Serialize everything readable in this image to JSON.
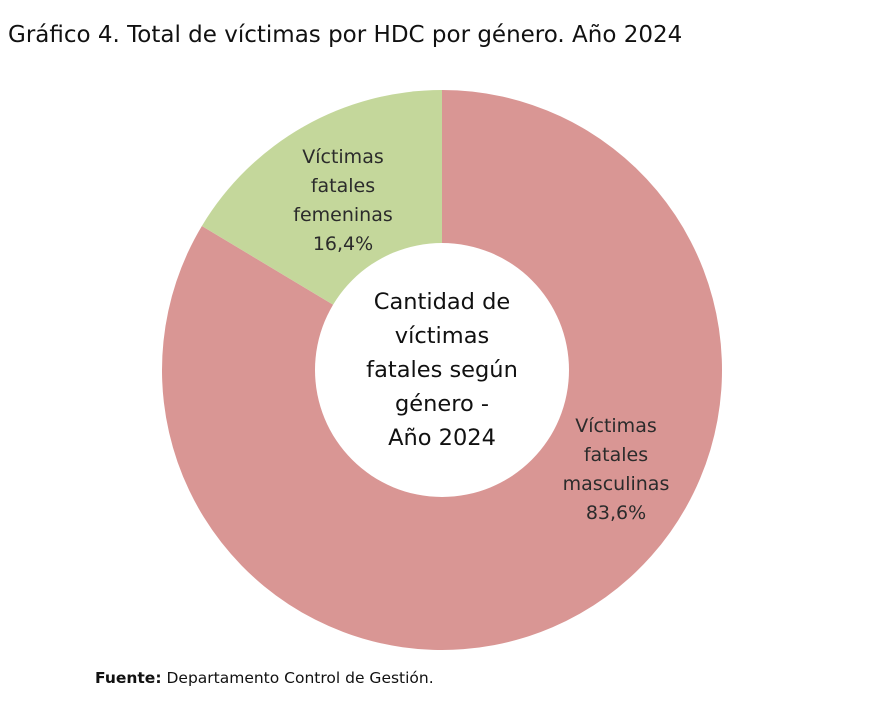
{
  "figure": {
    "title": "Gráfico 4. Total de víctimas por HDC por género. Año 2024"
  },
  "chart_data": {
    "type": "pie",
    "donut": true,
    "center_text": [
      "Cantidad de",
      "víctimas",
      "fatales según",
      "género -",
      "Año 2024"
    ],
    "slices": [
      {
        "label_lines": [
          "Víctimas",
          "fatales",
          "masculinas"
        ],
        "value": 83.6,
        "value_label": "83,6%",
        "color": "#d99694"
      },
      {
        "label_lines": [
          "Víctimas",
          "fatales",
          "femeninas"
        ],
        "value": 16.4,
        "value_label": "16,4%",
        "color": "#c4d79b"
      }
    ],
    "legend": "none"
  },
  "source": {
    "label": "Fuente:",
    "text": "Departamento Control de Gestión."
  }
}
